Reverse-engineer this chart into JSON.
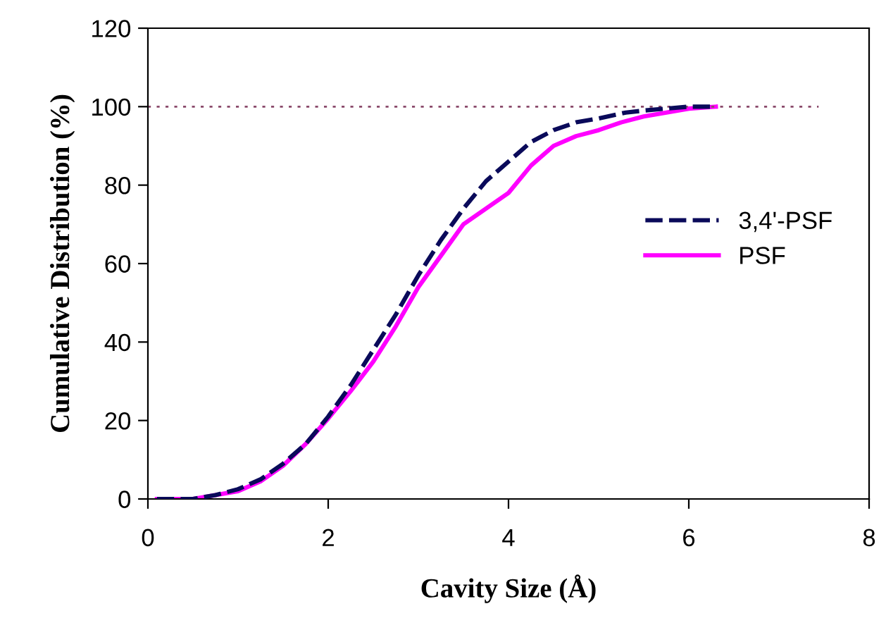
{
  "chart_data": {
    "type": "line",
    "xlabel": "Cavity Size (Å)",
    "ylabel": "Cumulative Distribution (%)",
    "xlim": [
      0,
      8
    ],
    "xticks": [
      0,
      2,
      4,
      6,
      8
    ],
    "ylim": [
      0,
      120
    ],
    "yticks": [
      0,
      20,
      40,
      60,
      80,
      100,
      120
    ],
    "grid": false,
    "legend": "right",
    "marker": "none",
    "ref_lines": [
      {
        "axis": "y",
        "value": 100,
        "color": "#8b4a6b",
        "line_style": "dotted"
      }
    ],
    "series": [
      {
        "name": "3,4'-PSF",
        "color": "#0a0a5a",
        "line_style": "dashed",
        "x": [
          0.1,
          0.5,
          0.75,
          1.0,
          1.25,
          1.5,
          1.75,
          2.0,
          2.25,
          2.5,
          2.75,
          3.0,
          3.25,
          3.5,
          3.75,
          4.0,
          4.25,
          4.5,
          4.75,
          5.0,
          5.3,
          5.5,
          5.75,
          6.0,
          6.25
        ],
        "values": [
          0,
          0,
          1,
          2.5,
          5,
          9,
          14,
          21,
          29,
          38,
          47,
          57,
          66,
          74,
          81,
          86,
          91,
          94,
          96,
          97,
          98.5,
          99,
          99.5,
          100,
          100
        ]
      },
      {
        "name": "PSF",
        "color": "#ff00ff",
        "line_style": "solid",
        "x": [
          0.1,
          0.5,
          0.75,
          1.0,
          1.25,
          1.5,
          1.75,
          2.0,
          2.25,
          2.5,
          2.75,
          3.0,
          3.25,
          3.5,
          3.75,
          4.0,
          4.25,
          4.5,
          4.75,
          5.0,
          5.25,
          5.5,
          5.75,
          6.0,
          6.3
        ],
        "values": [
          0,
          0,
          1,
          2,
          4.5,
          8.5,
          14,
          20.5,
          27.5,
          35,
          44,
          54,
          62,
          70,
          74,
          78,
          85,
          90,
          92.5,
          94,
          96,
          97.5,
          98.5,
          99.5,
          100
        ]
      }
    ]
  }
}
